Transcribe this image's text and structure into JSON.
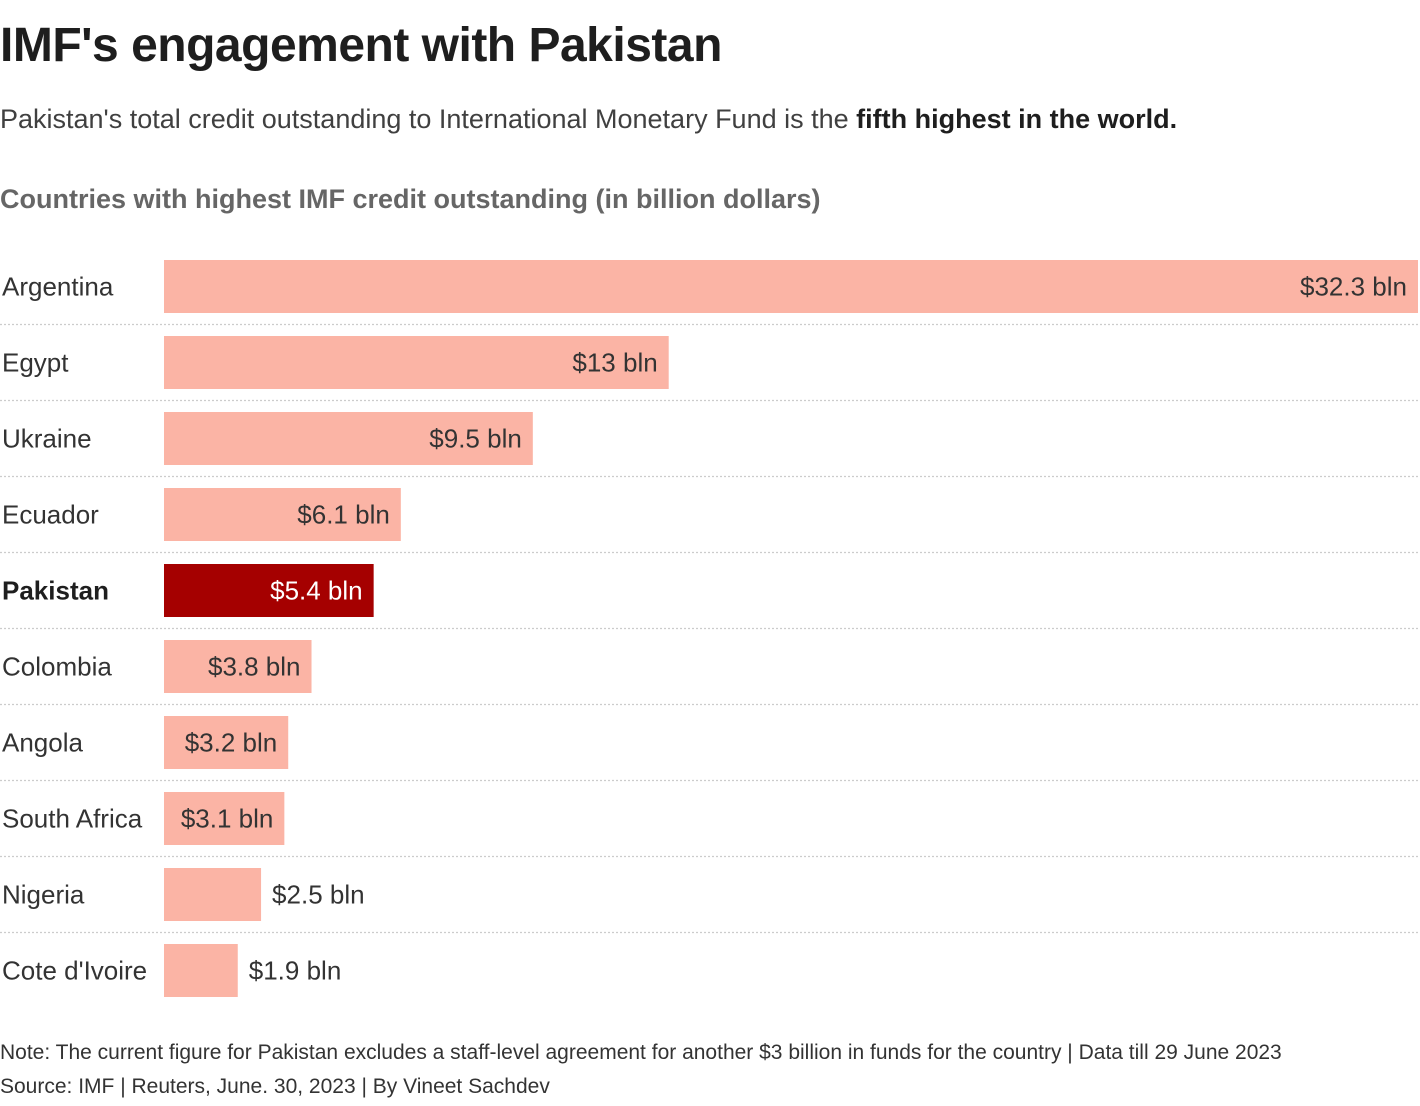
{
  "header": {
    "title": "IMF's engagement with Pakistan",
    "subtitle_text": "Pakistan's total credit outstanding to International Monetary Fund is the ",
    "subtitle_bold": "fifth highest in the world."
  },
  "footer": {
    "note": "Note: The current figure for Pakistan excludes a staff-level agreement for another $3 billion in funds for the country | Data till 29 June 2023",
    "source": "Source: IMF | Reuters, June. 30, 2023 | By Vineet Sachdev"
  },
  "chart_data": {
    "type": "bar",
    "orientation": "horizontal",
    "title": "Countries with highest IMF credit outstanding (in billion dollars)",
    "categories": [
      "Argentina",
      "Egypt",
      "Ukraine",
      "Ecuador",
      "Pakistan",
      "Colombia",
      "Angola",
      "South Africa",
      "Nigeria",
      "Cote d'Ivoire"
    ],
    "values": [
      32.3,
      13,
      9.5,
      6.1,
      5.4,
      3.8,
      3.2,
      3.1,
      2.5,
      1.9
    ],
    "data_labels": [
      "$32.3 bln",
      "$13 bln",
      "$9.5 bln",
      "$6.1 bln",
      "$5.4 bln",
      "$3.8 bln",
      "$3.2 bln",
      "$3.1 bln",
      "$2.5 bln",
      "$1.9 bln"
    ],
    "highlight": "Pakistan",
    "colors": {
      "bar": "#fbb4a5",
      "highlight_bar": "#a50000",
      "label_dark": "#333333",
      "label_light": "#ffffff",
      "separator": "#cccccc"
    },
    "xlim": [
      0,
      32.3
    ],
    "grid": false,
    "legend": "none"
  }
}
